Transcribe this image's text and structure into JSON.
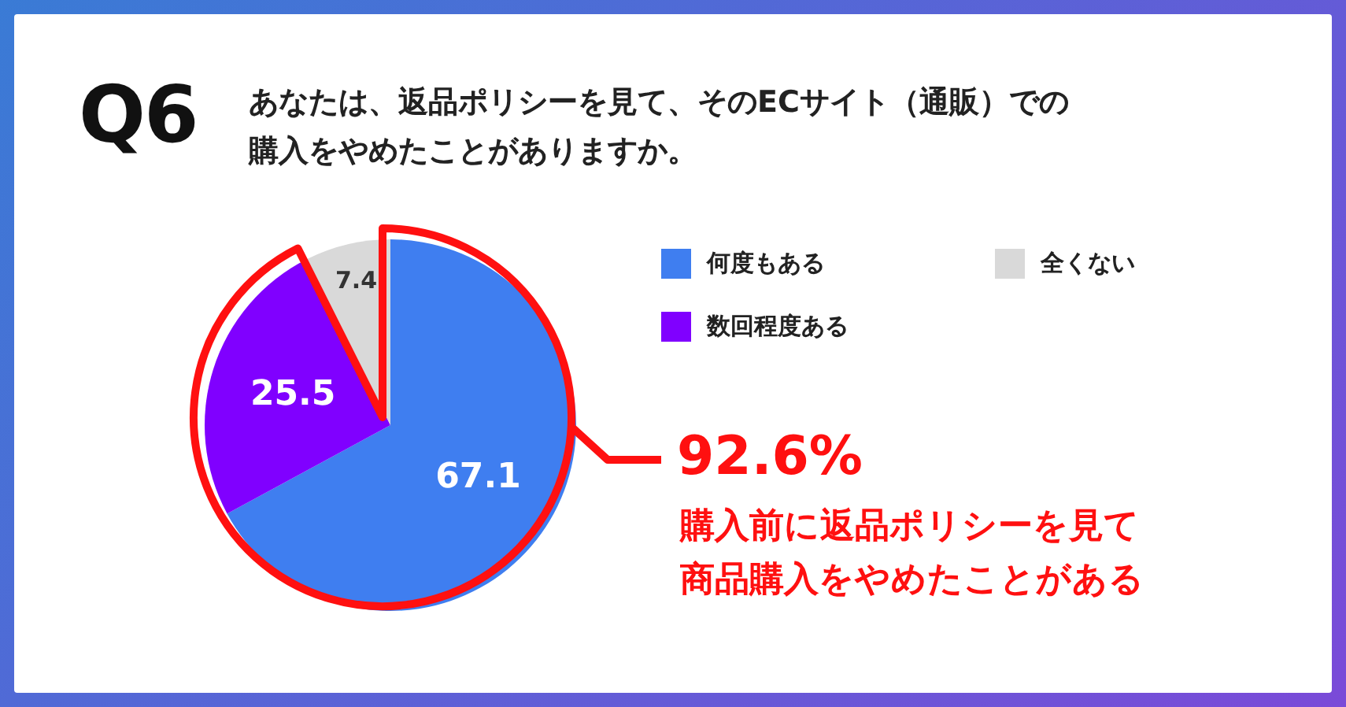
{
  "chart_data": {
    "type": "pie",
    "title": "Q6",
    "subtitle": "あなたは、返品ポリシーを見て、そのECサイト（通販）での購入をやめたことがありますか。",
    "categories": [
      "何度もある",
      "数回程度ある",
      "全くない"
    ],
    "values": [
      67.1,
      25.5,
      7.4
    ],
    "colors": [
      "#3f7ef0",
      "#8000ff",
      "#d9d9d9"
    ],
    "data_labels": true,
    "legend": "top right",
    "annotations": [
      "92.6%",
      "購入前に返品ポリシーを見て商品購入をやめたことがある"
    ]
  }
}
